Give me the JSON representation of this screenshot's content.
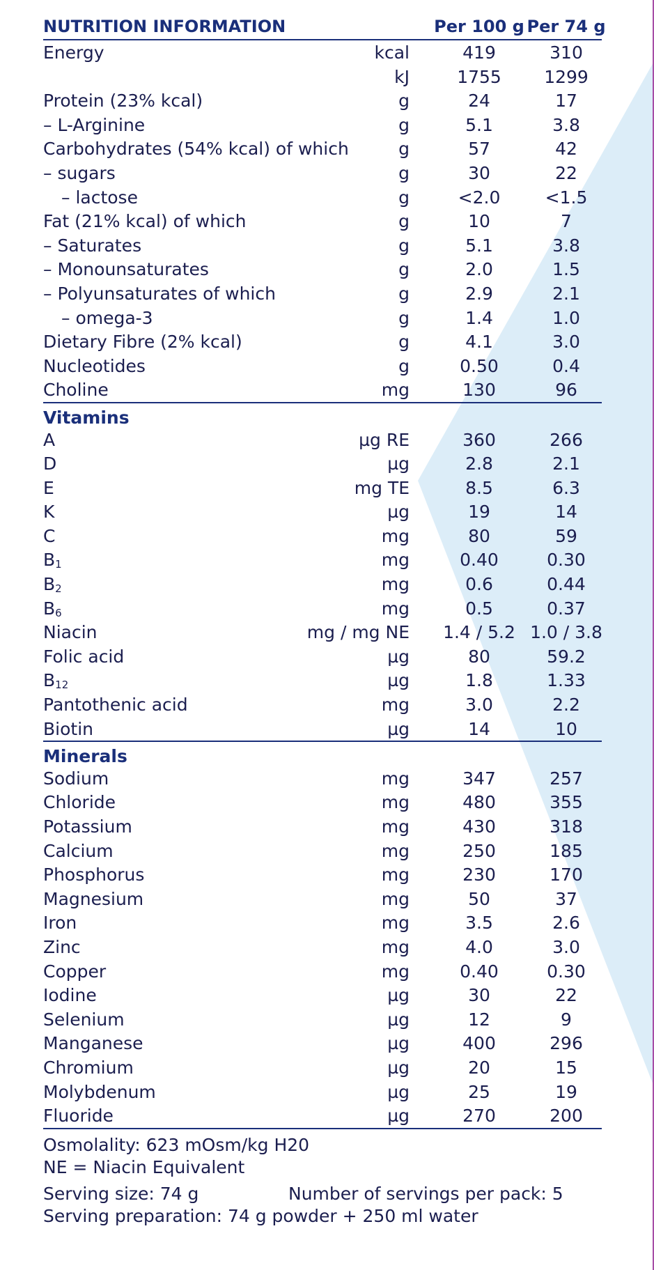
{
  "header": {
    "title": "NUTRITION INFORMATION",
    "col1": "Per 100 g",
    "col2": "Per 74 g"
  },
  "main_rows": [
    {
      "name": "Energy",
      "indent": 0,
      "unit": "kcal",
      "v1": "419",
      "v2": "310"
    },
    {
      "name": "",
      "indent": 0,
      "unit": "kJ",
      "v1": "1755",
      "v2": "1299"
    },
    {
      "name": "Protein (23% kcal)",
      "indent": 0,
      "unit": "g",
      "v1": "24",
      "v2": "17"
    },
    {
      "name": "– L-Arginine",
      "indent": 0,
      "unit": "g",
      "v1": "5.1",
      "v2": "3.8"
    },
    {
      "name": "Carbohydrates (54% kcal) of which",
      "indent": 0,
      "unit": "g",
      "v1": "57",
      "v2": "42"
    },
    {
      "name": "– sugars",
      "indent": 0,
      "unit": "g",
      "v1": "30",
      "v2": "22"
    },
    {
      "name": "– lactose",
      "indent": 1,
      "unit": "g",
      "v1": "<2.0",
      "v2": "<1.5"
    },
    {
      "name": "Fat (21% kcal) of which",
      "indent": 0,
      "unit": "g",
      "v1": "10",
      "v2": "7"
    },
    {
      "name": "– Saturates",
      "indent": 0,
      "unit": "g",
      "v1": "5.1",
      "v2": "3.8"
    },
    {
      "name": "– Monounsaturates",
      "indent": 0,
      "unit": "g",
      "v1": "2.0",
      "v2": "1.5"
    },
    {
      "name": "– Polyunsaturates of which",
      "indent": 0,
      "unit": "g",
      "v1": "2.9",
      "v2": "2.1"
    },
    {
      "name": "– omega-3",
      "indent": 1,
      "unit": "g",
      "v1": "1.4",
      "v2": "1.0"
    },
    {
      "name": "Dietary Fibre (2% kcal)",
      "indent": 0,
      "unit": "g",
      "v1": "4.1",
      "v2": "3.0"
    },
    {
      "name": "Nucleotides",
      "indent": 0,
      "unit": "g",
      "v1": "0.50",
      "v2": "0.4"
    },
    {
      "name": "Choline",
      "indent": 0,
      "unit": "mg",
      "v1": "130",
      "v2": "96"
    }
  ],
  "vitamins": {
    "title": "Vitamins",
    "rows": [
      {
        "name": "A",
        "sub": "",
        "unit": "µg RE",
        "v1": "360",
        "v2": "266"
      },
      {
        "name": "D",
        "sub": "",
        "unit": "µg",
        "v1": "2.8",
        "v2": "2.1"
      },
      {
        "name": "E",
        "sub": "",
        "unit": "mg TE",
        "v1": "8.5",
        "v2": "6.3"
      },
      {
        "name": "K",
        "sub": "",
        "unit": "µg",
        "v1": "19",
        "v2": "14"
      },
      {
        "name": "C",
        "sub": "",
        "unit": "mg",
        "v1": "80",
        "v2": "59"
      },
      {
        "name": "B",
        "sub": "1",
        "unit": "mg",
        "v1": "0.40",
        "v2": "0.30"
      },
      {
        "name": "B",
        "sub": "2",
        "unit": "mg",
        "v1": "0.6",
        "v2": "0.44"
      },
      {
        "name": "B",
        "sub": "6",
        "unit": "mg",
        "v1": "0.5",
        "v2": "0.37"
      },
      {
        "name": "Niacin",
        "sub": "",
        "unit": "mg / mg NE",
        "v1": "1.4 / 5.2",
        "v2": "1.0 / 3.8"
      },
      {
        "name": "Folic acid",
        "sub": "",
        "unit": "µg",
        "v1": "80",
        "v2": "59.2"
      },
      {
        "name": "B",
        "sub": "12",
        "unit": "µg",
        "v1": "1.8",
        "v2": "1.33"
      },
      {
        "name": "Pantothenic acid",
        "sub": "",
        "unit": "mg",
        "v1": "3.0",
        "v2": "2.2"
      },
      {
        "name": "Biotin",
        "sub": "",
        "unit": "µg",
        "v1": "14",
        "v2": "10"
      }
    ]
  },
  "minerals": {
    "title": "Minerals",
    "rows": [
      {
        "name": "Sodium",
        "unit": "mg",
        "v1": "347",
        "v2": "257"
      },
      {
        "name": "Chloride",
        "unit": "mg",
        "v1": "480",
        "v2": "355"
      },
      {
        "name": "Potassium",
        "unit": "mg",
        "v1": "430",
        "v2": "318"
      },
      {
        "name": "Calcium",
        "unit": "mg",
        "v1": "250",
        "v2": "185"
      },
      {
        "name": "Phosphorus",
        "unit": "mg",
        "v1": "230",
        "v2": "170"
      },
      {
        "name": "Magnesium",
        "unit": "mg",
        "v1": "50",
        "v2": "37"
      },
      {
        "name": "Iron",
        "unit": "mg",
        "v1": "3.5",
        "v2": "2.6"
      },
      {
        "name": "Zinc",
        "unit": "mg",
        "v1": "4.0",
        "v2": "3.0"
      },
      {
        "name": "Copper",
        "unit": "mg",
        "v1": "0.40",
        "v2": "0.30"
      },
      {
        "name": "Iodine",
        "unit": "µg",
        "v1": "30",
        "v2": "22"
      },
      {
        "name": "Selenium",
        "unit": "µg",
        "v1": "12",
        "v2": "9"
      },
      {
        "name": "Manganese",
        "unit": "µg",
        "v1": "400",
        "v2": "296"
      },
      {
        "name": "Chromium",
        "unit": "µg",
        "v1": "20",
        "v2": "15"
      },
      {
        "name": "Molybdenum",
        "unit": "µg",
        "v1": "25",
        "v2": "19"
      },
      {
        "name": "Fluoride",
        "unit": "µg",
        "v1": "270",
        "v2": "200"
      }
    ]
  },
  "footer": {
    "osmolality": "Osmolality: 623 mOsm/kg H20",
    "ne_note": "NE = Niacin Equivalent",
    "serving_size": "Serving size: 74 g",
    "servings_per_pack": "Number of servings per pack: 5",
    "preparation": "Serving preparation: 74 g powder + 250 ml water"
  },
  "colors": {
    "heading": "#1a2f7a",
    "text": "#1b1e4f",
    "background_shape": "#dcedf8",
    "edge_line": "#a64ca6"
  }
}
